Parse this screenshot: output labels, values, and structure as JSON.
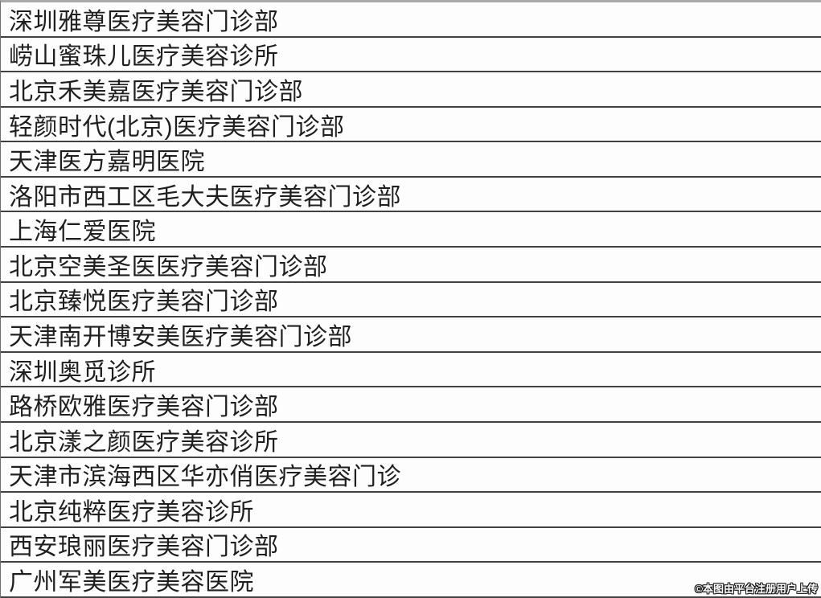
{
  "table": {
    "rows": [
      "深圳雅尊医疗美容门诊部",
      "崂山蜜珠儿医疗美容诊所",
      "北京禾美嘉医疗美容门诊部",
      "轻颜时代(北京)医疗美容门诊部",
      "天津医方嘉明医院",
      "洛阳市西工区毛大夫医疗美容门诊部",
      "上海仁爱医院",
      "北京空美圣医医疗美容门诊部",
      "北京臻悦医疗美容门诊部",
      "天津南开博安美医疗美容门诊部",
      "深圳奥觅诊所",
      "路桥欧雅医疗美容门诊部",
      "北京漾之颜医疗美容诊所",
      "天津市滨海西区华亦俏医疗美容门诊",
      "北京纯粹医疗美容诊所",
      "西安琅丽医疗美容门诊部",
      "广州军美医疗美容医院"
    ]
  },
  "watermark": {
    "text": "©本图由平台注册用户上传"
  },
  "colors": {
    "background": "#fdfdfd",
    "top_border": "#a9a9a9",
    "left_border": "#6e6e6e",
    "separator": "#414141",
    "text": "#1f1f1f",
    "watermark_fill": "#ffffff",
    "watermark_outline": "#1a1a1a"
  }
}
